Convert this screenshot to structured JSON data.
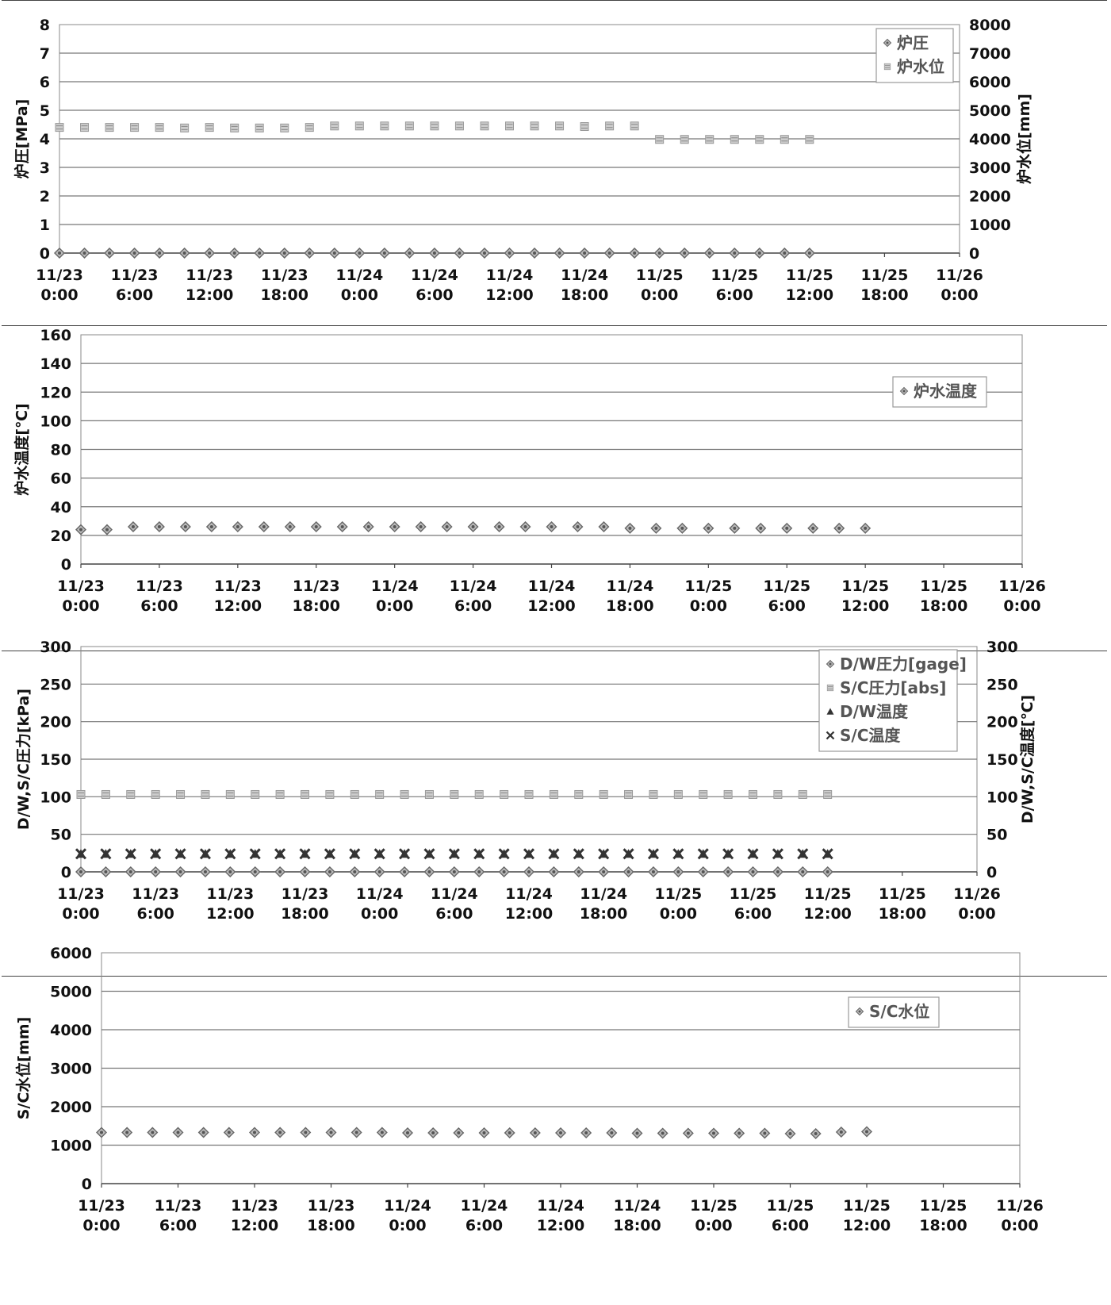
{
  "chart_data": [
    {
      "type": "scatter",
      "ylabel": "炉圧[MPa]",
      "y2label": "炉水位[mm]",
      "ylim": [
        0,
        8
      ],
      "y2lim": [
        0,
        8000
      ],
      "yticks": [
        "0",
        "1",
        "2",
        "3",
        "4",
        "5",
        "6",
        "7",
        "8"
      ],
      "y2ticks": [
        "0",
        "1000",
        "2000",
        "3000",
        "4000",
        "5000",
        "6000",
        "7000",
        "8000"
      ],
      "xticks": [
        "11/23\n0:00",
        "11/23\n6:00",
        "11/23\n12:00",
        "11/23\n18:00",
        "11/24\n0:00",
        "11/24\n6:00",
        "11/24\n12:00",
        "11/24\n18:00",
        "11/25\n0:00",
        "11/25\n6:00",
        "11/25\n12:00",
        "11/25\n18:00",
        "11/26\n0:00"
      ],
      "xlim": [
        0,
        72
      ],
      "grid": true,
      "legend_position": "top-right",
      "series": [
        {
          "name": "炉圧",
          "axis": "left",
          "marker": "diamond",
          "x": [
            0,
            2,
            4,
            6,
            8,
            10,
            12,
            14,
            16,
            18,
            20,
            22,
            24,
            26,
            28,
            30,
            32,
            34,
            36,
            38,
            40,
            42,
            44,
            46,
            48,
            50,
            52,
            54,
            56,
            58,
            60
          ],
          "y": [
            0,
            0,
            0,
            0,
            0,
            0,
            0,
            0,
            0,
            0,
            0,
            0,
            0,
            0,
            0,
            0,
            0,
            0,
            0,
            0,
            0,
            0,
            0,
            0,
            0,
            0,
            0,
            0,
            0,
            0,
            0
          ]
        },
        {
          "name": "炉水位",
          "axis": "right",
          "marker": "square",
          "x": [
            0,
            2,
            4,
            6,
            8,
            10,
            12,
            14,
            16,
            18,
            20,
            22,
            24,
            26,
            28,
            30,
            32,
            34,
            36,
            38,
            40,
            42,
            44,
            46,
            48,
            50,
            52,
            54,
            56,
            58,
            60
          ],
          "y": [
            4400,
            4400,
            4400,
            4400,
            4400,
            4380,
            4400,
            4380,
            4380,
            4380,
            4400,
            4450,
            4450,
            4450,
            4450,
            4450,
            4450,
            4450,
            4450,
            4450,
            4450,
            4430,
            4450,
            4450,
            3980,
            3980,
            3980,
            3980,
            3980,
            3980,
            3980
          ]
        }
      ]
    },
    {
      "type": "scatter",
      "ylabel": "炉水温度[℃]",
      "ylim": [
        0,
        160
      ],
      "yticks": [
        "0",
        "20",
        "40",
        "60",
        "80",
        "100",
        "120",
        "140",
        "160"
      ],
      "xticks": [
        "11/23\n0:00",
        "11/23\n6:00",
        "11/23\n12:00",
        "11/23\n18:00",
        "11/24\n0:00",
        "11/24\n6:00",
        "11/24\n12:00",
        "11/24\n18:00",
        "11/25\n0:00",
        "11/25\n6:00",
        "11/25\n12:00",
        "11/25\n18:00",
        "11/26\n0:00"
      ],
      "xlim": [
        0,
        72
      ],
      "grid": true,
      "legend_position": "top-right",
      "series": [
        {
          "name": "炉水温度",
          "axis": "left",
          "marker": "diamond",
          "x": [
            0,
            2,
            4,
            6,
            8,
            10,
            12,
            14,
            16,
            18,
            20,
            22,
            24,
            26,
            28,
            30,
            32,
            34,
            36,
            38,
            40,
            42,
            44,
            46,
            48,
            50,
            52,
            54,
            56,
            58,
            60
          ],
          "y": [
            24,
            24,
            26,
            26,
            26,
            26,
            26,
            26,
            26,
            26,
            26,
            26,
            26,
            26,
            26,
            26,
            26,
            26,
            26,
            26,
            26,
            25,
            25,
            25,
            25,
            25,
            25,
            25,
            25,
            25,
            25
          ]
        }
      ]
    },
    {
      "type": "scatter",
      "ylabel": "D/W,S/C圧力[kPa]",
      "y2label": "D/W,S/C温度[℃]",
      "ylim": [
        0,
        300
      ],
      "y2lim": [
        0,
        300
      ],
      "yticks": [
        "0",
        "50",
        "100",
        "150",
        "200",
        "250",
        "300"
      ],
      "y2ticks": [
        "0",
        "50",
        "100",
        "150",
        "200",
        "250",
        "300"
      ],
      "xticks": [
        "11/23\n0:00",
        "11/23\n6:00",
        "11/23\n12:00",
        "11/23\n18:00",
        "11/24\n0:00",
        "11/24\n6:00",
        "11/24\n12:00",
        "11/24\n18:00",
        "11/25\n0:00",
        "11/25\n6:00",
        "11/25\n12:00",
        "11/25\n18:00",
        "11/26\n0:00"
      ],
      "xlim": [
        0,
        72
      ],
      "grid": true,
      "legend_position": "top-right",
      "series": [
        {
          "name": "D/W圧力[gage]",
          "axis": "left",
          "marker": "diamond",
          "x": [
            0,
            2,
            4,
            6,
            8,
            10,
            12,
            14,
            16,
            18,
            20,
            22,
            24,
            26,
            28,
            30,
            32,
            34,
            36,
            38,
            40,
            42,
            44,
            46,
            48,
            50,
            52,
            54,
            56,
            58,
            60
          ],
          "y": [
            0,
            0,
            0,
            0,
            0,
            0,
            0,
            0,
            0,
            0,
            0,
            0,
            0,
            0,
            0,
            0,
            0,
            0,
            0,
            0,
            0,
            0,
            0,
            0,
            0,
            0,
            0,
            0,
            0,
            0,
            0
          ]
        },
        {
          "name": "S/C圧力[abs]",
          "axis": "left",
          "marker": "square",
          "x": [
            0,
            2,
            4,
            6,
            8,
            10,
            12,
            14,
            16,
            18,
            20,
            22,
            24,
            26,
            28,
            30,
            32,
            34,
            36,
            38,
            40,
            42,
            44,
            46,
            48,
            50,
            52,
            54,
            56,
            58,
            60
          ],
          "y": [
            103,
            103,
            103,
            103,
            103,
            103,
            103,
            103,
            103,
            103,
            103,
            103,
            103,
            103,
            103,
            103,
            103,
            103,
            103,
            103,
            103,
            103,
            103,
            103,
            103,
            103,
            103,
            103,
            103,
            103,
            103
          ]
        },
        {
          "name": "D/W温度",
          "axis": "right",
          "marker": "triangle",
          "x": [
            0,
            2,
            4,
            6,
            8,
            10,
            12,
            14,
            16,
            18,
            20,
            22,
            24,
            26,
            28,
            30,
            32,
            34,
            36,
            38,
            40,
            42,
            44,
            46,
            48,
            50,
            52,
            54,
            56,
            58,
            60
          ],
          "y": [
            24,
            24,
            24,
            24,
            24,
            24,
            24,
            24,
            24,
            24,
            24,
            24,
            24,
            24,
            24,
            24,
            24,
            24,
            24,
            24,
            24,
            24,
            24,
            24,
            24,
            24,
            24,
            24,
            24,
            24,
            24
          ]
        },
        {
          "name": "S/C温度",
          "axis": "right",
          "marker": "x",
          "x": [
            0,
            2,
            4,
            6,
            8,
            10,
            12,
            14,
            16,
            18,
            20,
            22,
            24,
            26,
            28,
            30,
            32,
            34,
            36,
            38,
            40,
            42,
            44,
            46,
            48,
            50,
            52,
            54,
            56,
            58,
            60
          ],
          "y": [
            24,
            24,
            24,
            24,
            24,
            24,
            24,
            24,
            24,
            24,
            24,
            24,
            24,
            24,
            24,
            24,
            24,
            24,
            24,
            24,
            24,
            24,
            24,
            24,
            24,
            24,
            24,
            24,
            24,
            24,
            24
          ]
        }
      ]
    },
    {
      "type": "scatter",
      "ylabel": "S/C水位[mm]",
      "ylim": [
        0,
        6000
      ],
      "yticks": [
        "0",
        "1000",
        "2000",
        "3000",
        "4000",
        "5000",
        "6000"
      ],
      "xticks": [
        "11/23\n0:00",
        "11/23\n6:00",
        "11/23\n12:00",
        "11/23\n18:00",
        "11/24\n0:00",
        "11/24\n6:00",
        "11/24\n12:00",
        "11/24\n18:00",
        "11/25\n0:00",
        "11/25\n6:00",
        "11/25\n12:00",
        "11/25\n18:00",
        "11/26\n0:00"
      ],
      "xlim": [
        0,
        72
      ],
      "grid": true,
      "legend_position": "top-right",
      "series": [
        {
          "name": "S/C水位",
          "axis": "left",
          "marker": "diamond",
          "x": [
            0,
            2,
            4,
            6,
            8,
            10,
            12,
            14,
            16,
            18,
            20,
            22,
            24,
            26,
            28,
            30,
            32,
            34,
            36,
            38,
            40,
            42,
            44,
            46,
            48,
            50,
            52,
            54,
            56,
            58,
            60
          ],
          "y": [
            1330,
            1330,
            1330,
            1330,
            1330,
            1330,
            1330,
            1330,
            1330,
            1330,
            1330,
            1330,
            1320,
            1320,
            1320,
            1320,
            1320,
            1320,
            1320,
            1320,
            1320,
            1310,
            1310,
            1310,
            1310,
            1310,
            1310,
            1300,
            1300,
            1340,
            1350
          ]
        }
      ]
    }
  ]
}
